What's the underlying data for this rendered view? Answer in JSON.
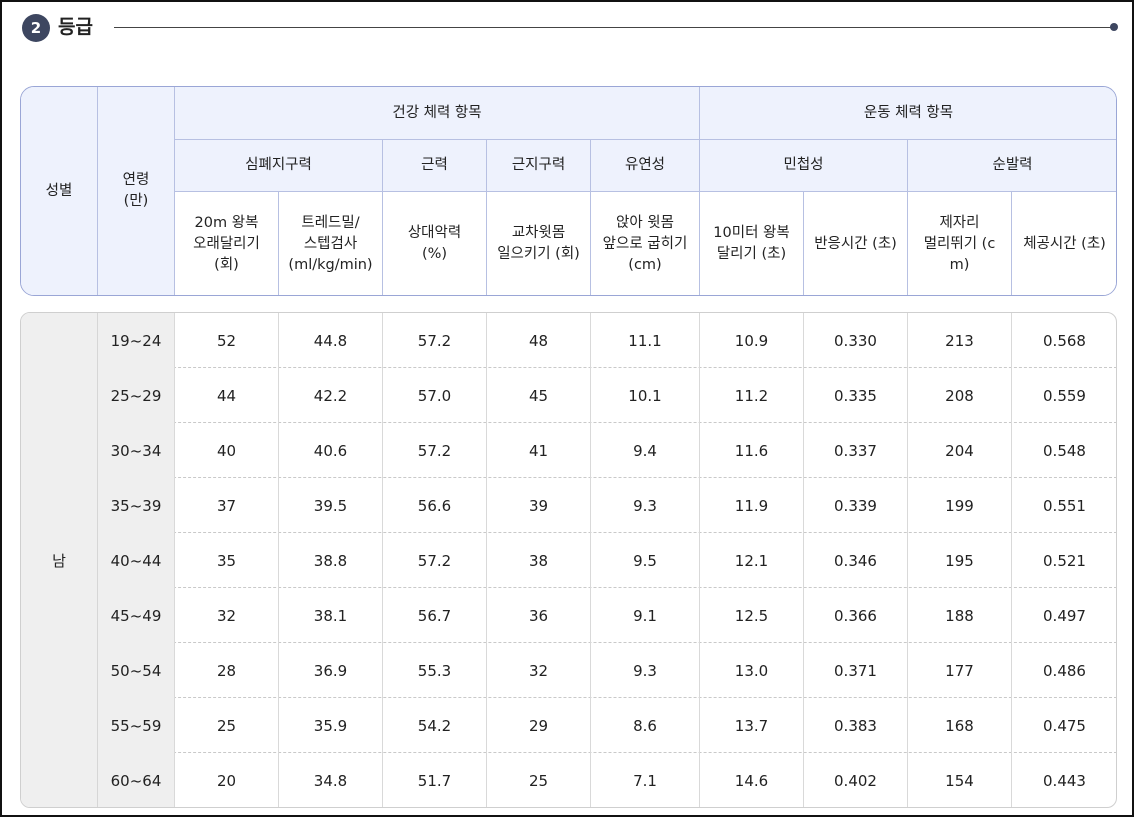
{
  "section": {
    "number": "2",
    "title": "등급"
  },
  "header": {
    "sex": "성별",
    "age": "연령\n(만)",
    "health_group": "건강 체력 항목",
    "sport_group": "운동 체력 항목",
    "subgroups": {
      "cardio": "심폐지구력",
      "strength": "근력",
      "endurance": "근지구력",
      "flexibility": "유연성",
      "agility": "민첩성",
      "power": "순발력"
    },
    "items": [
      "20m 왕복\n오래달리기\n(회)",
      "트레드밀/\n스텝검사\n(ml/kg/min)",
      "상대악력\n(%)",
      "교차윗몸\n일으키기 (회)",
      "앉아 윗몸\n앞으로 굽히기\n(cm)",
      "10미터 왕복\n달리기 (초)",
      "반응시간 (초)",
      "제자리\n멀리뛰기 (c\nm)",
      "체공시간 (초)"
    ]
  },
  "body": {
    "sex_value": "남",
    "rows": [
      {
        "age": "19~24",
        "values": [
          "52",
          "44.8",
          "57.2",
          "48",
          "11.1",
          "10.9",
          "0.330",
          "213",
          "0.568"
        ]
      },
      {
        "age": "25~29",
        "values": [
          "44",
          "42.2",
          "57.0",
          "45",
          "10.1",
          "11.2",
          "0.335",
          "208",
          "0.559"
        ]
      },
      {
        "age": "30~34",
        "values": [
          "40",
          "40.6",
          "57.2",
          "41",
          "9.4",
          "11.6",
          "0.337",
          "204",
          "0.548"
        ]
      },
      {
        "age": "35~39",
        "values": [
          "37",
          "39.5",
          "56.6",
          "39",
          "9.3",
          "11.9",
          "0.339",
          "199",
          "0.551"
        ]
      },
      {
        "age": "40~44",
        "values": [
          "35",
          "38.8",
          "57.2",
          "38",
          "9.5",
          "12.1",
          "0.346",
          "195",
          "0.521"
        ]
      },
      {
        "age": "45~49",
        "values": [
          "32",
          "38.1",
          "56.7",
          "36",
          "9.1",
          "12.5",
          "0.366",
          "188",
          "0.497"
        ]
      },
      {
        "age": "50~54",
        "values": [
          "28",
          "36.9",
          "55.3",
          "32",
          "9.3",
          "13.0",
          "0.371",
          "177",
          "0.486"
        ]
      },
      {
        "age": "55~59",
        "values": [
          "25",
          "35.9",
          "54.2",
          "29",
          "8.6",
          "13.7",
          "0.383",
          "168",
          "0.475"
        ]
      },
      {
        "age": "60~64",
        "values": [
          "20",
          "34.8",
          "51.7",
          "25",
          "7.1",
          "14.6",
          "0.402",
          "154",
          "0.443"
        ]
      }
    ]
  }
}
